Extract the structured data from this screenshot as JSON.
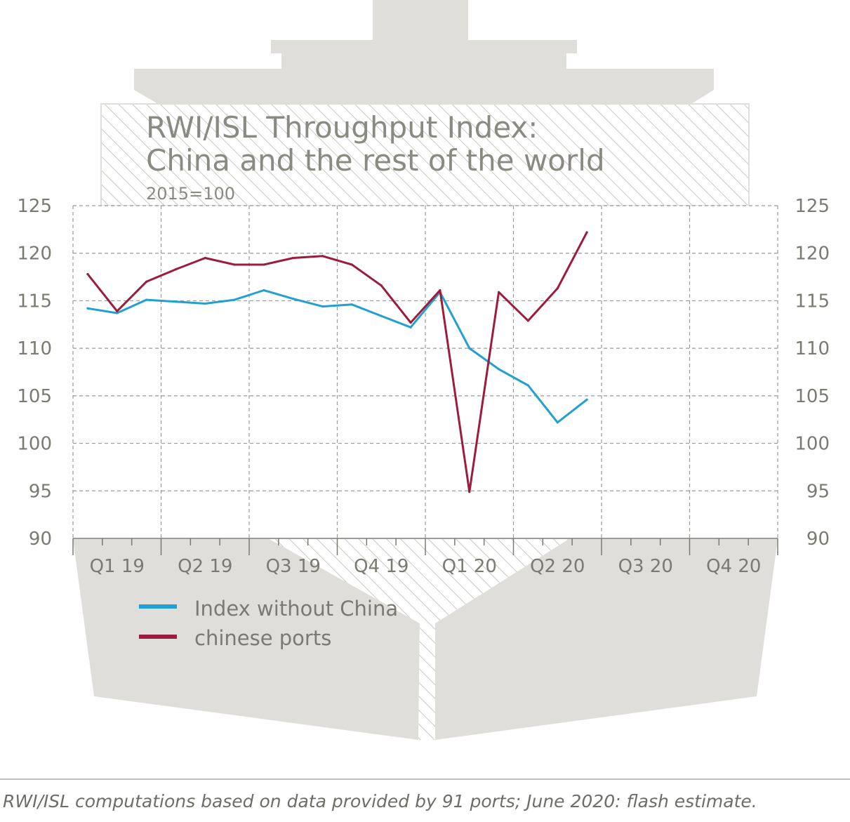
{
  "colors": {
    "ship": "#dfdedb",
    "hatch": "#c9c7c2",
    "index_without_china": "#22a0d2",
    "chinese_ports": "#9b1c3c",
    "text": "#7a7a72",
    "grid": "#9a9a96"
  },
  "chart_data": {
    "type": "line",
    "title_lines": [
      "RWI/ISL Throughput Index:",
      "China and the rest of the world"
    ],
    "subtitle": "2015=100",
    "ylim": [
      90,
      125
    ],
    "yticks": [
      125,
      120,
      115,
      110,
      105,
      100,
      95,
      90
    ],
    "yticks_right": [
      125,
      120,
      115,
      110,
      105,
      100,
      95,
      90
    ],
    "xlim": [
      0,
      24
    ],
    "quarters": [
      "Q1 19",
      "Q2 19",
      "Q3 19",
      "Q4 19",
      "Q1 20",
      "Q2 20",
      "Q3 20",
      "Q4 20"
    ],
    "grid": true,
    "legend_position": "bottom-left",
    "series": [
      {
        "name": "Index without China",
        "color": "#22a0d2",
        "x": [
          0.5,
          1.5,
          2.5,
          3.5,
          4.5,
          5.5,
          6.5,
          7.5,
          8.5,
          9.5,
          10.5,
          11.5,
          12.5,
          13.5,
          14.5,
          15.5,
          16.5,
          17.5
        ],
        "values": [
          114.2,
          113.7,
          115.1,
          114.9,
          114.7,
          115.1,
          116.1,
          115.2,
          114.4,
          114.6,
          113.4,
          112.2,
          115.9,
          110.0,
          107.8,
          106.1,
          102.2,
          104.6
        ]
      },
      {
        "name": "chinese ports",
        "color": "#9b1c3c",
        "x": [
          0.5,
          1.5,
          2.5,
          3.5,
          4.5,
          5.5,
          6.5,
          7.5,
          8.5,
          9.5,
          10.5,
          11.5,
          12.5,
          13.5,
          14.5,
          15.5,
          16.5,
          17.5
        ],
        "values": [
          117.8,
          113.9,
          117.0,
          118.3,
          119.5,
          118.8,
          118.8,
          119.5,
          119.7,
          118.8,
          116.6,
          112.7,
          116.1,
          94.9,
          115.9,
          112.9,
          116.3,
          122.2
        ]
      }
    ]
  },
  "source_note": "RWI/ISL computations based on data provided by 91 ports; June 2020: flash estimate."
}
